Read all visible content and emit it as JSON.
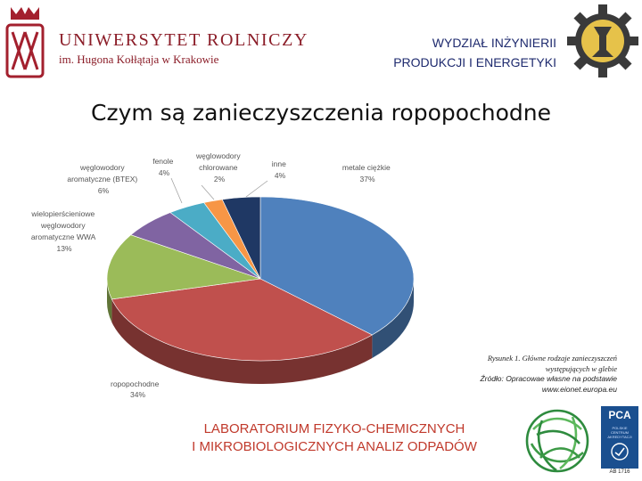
{
  "header": {
    "university_name": "UNIWERSYTET ROLNICZY",
    "university_sub": "im. Hugona Kołłątaja w Krakowie",
    "faculty_line1": "WYDZIAŁ INŻYNIERII",
    "faculty_line2": "PRODUKCJI I ENERGETYKI"
  },
  "slide_title": "Czym są zanieczyszczenia ropopochodne",
  "chart_data": {
    "type": "pie",
    "slices": [
      {
        "label": "metale ciężkie",
        "value": 37,
        "display": "37%",
        "color": "#4f81bd"
      },
      {
        "label": "ropopochodne",
        "value": 34,
        "display": "34%",
        "color": "#c0504d"
      },
      {
        "label": "wielopierścieniowe węglowodory aromatyczne WWA",
        "value": 13,
        "display": "13%",
        "color": "#9bbb59"
      },
      {
        "label": "węglowodory aromatyczne (BTEX)",
        "value": 6,
        "display": "6%",
        "color": "#8064a2"
      },
      {
        "label": "fenole",
        "value": 4,
        "display": "4%",
        "color": "#4bacc6"
      },
      {
        "label": "węglowodory chlorowane",
        "value": 2,
        "display": "2%",
        "color": "#f79646"
      },
      {
        "label": "inne",
        "value": 4,
        "display": "4%",
        "color": "#1f3864"
      }
    ],
    "label_lines": {
      "metale": [
        "metale ciężkie",
        "37%"
      ],
      "ropo": [
        "ropopochodne",
        "34%"
      ],
      "wwa": [
        "wielopierścieniowe",
        "węglowodory",
        "aromatyczne WWA",
        "13%"
      ],
      "btex": [
        "węglowodory",
        "aromatyczne (BTEX)",
        "6%"
      ],
      "fenole": [
        "fenole",
        "4%"
      ],
      "chlor": [
        "węglowodory",
        "chlorowane",
        "2%"
      ],
      "inne": [
        "inne",
        "4%"
      ]
    }
  },
  "caption": {
    "line1": "Rysunek 1. Główne rodzaje zanieczyszczeń",
    "line2": "występujących w glebie",
    "line3": "Źródło: Opracowae własne na podstawie",
    "line4": "www.eionet.europa.eu"
  },
  "lab": {
    "line1": "LABORATORIUM FIZYKO-CHEMICZNYCH",
    "line2": "I MIKROBIOLOGICZNYCH ANALIZ ODPADÓW"
  },
  "pca": {
    "logo_text": "PCA",
    "sub_text": "POLSKIE CENTRUM AKREDYTACJI",
    "ab_number": "AB 1716"
  },
  "colors": {
    "brand_red": "#8b1d28",
    "faculty_blue": "#1e2a6e",
    "lab_red": "#c0392b"
  }
}
